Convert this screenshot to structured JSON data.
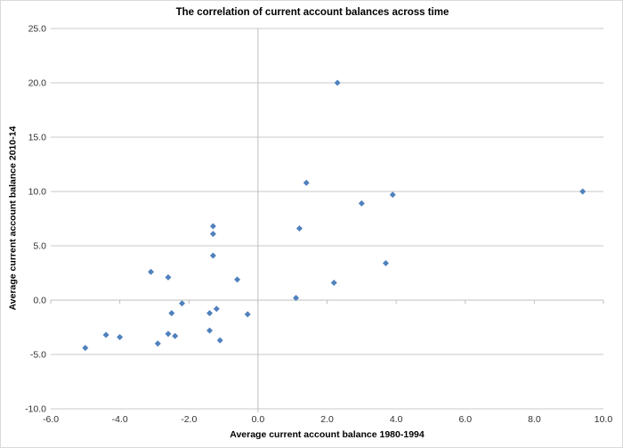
{
  "chart_data": {
    "type": "scatter",
    "title": "The correlation of current account balances across time",
    "xlabel": "Average current account balance 1980-1994",
    "ylabel": "Average current account balance 2010-14",
    "xlim": [
      -6.0,
      10.0
    ],
    "ylim": [
      -10.0,
      25.0
    ],
    "x_ticks": [
      -6,
      -4,
      -2,
      0,
      2,
      4,
      6,
      8,
      10
    ],
    "x_tick_labels": [
      "-6.0",
      "-4.0",
      "-2.0",
      "0.0",
      "2.0",
      "4.0",
      "6.0",
      "8.0",
      "10.0"
    ],
    "y_ticks": [
      25,
      20,
      15,
      10,
      5,
      0,
      -5,
      -10
    ],
    "y_tick_labels": [
      "25.0",
      "20.0",
      "15.0",
      "10.0",
      "5.0",
      "0.0",
      "-5.0",
      "-10.0"
    ],
    "grid": "horizontal-major",
    "legend": "none",
    "marker": {
      "shape": "diamond",
      "size": 7
    },
    "points": [
      [
        2.3,
        20.0
      ],
      [
        1.4,
        10.8
      ],
      [
        9.4,
        10.0
      ],
      [
        3.9,
        9.7
      ],
      [
        3.0,
        8.9
      ],
      [
        -1.3,
        6.8
      ],
      [
        1.2,
        6.6
      ],
      [
        -1.3,
        6.1
      ],
      [
        -1.3,
        4.1
      ],
      [
        3.7,
        3.4
      ],
      [
        -3.1,
        2.6
      ],
      [
        -2.6,
        2.1
      ],
      [
        -0.6,
        1.9
      ],
      [
        2.2,
        1.6
      ],
      [
        1.1,
        0.2
      ],
      [
        -2.2,
        -0.3
      ],
      [
        -1.2,
        -0.8
      ],
      [
        -2.5,
        -1.2
      ],
      [
        -1.4,
        -1.2
      ],
      [
        -0.3,
        -1.3
      ],
      [
        -1.4,
        -2.8
      ],
      [
        -2.6,
        -3.1
      ],
      [
        -4.4,
        -3.2
      ],
      [
        -2.4,
        -3.3
      ],
      [
        -4.0,
        -3.4
      ],
      [
        -1.1,
        -3.7
      ],
      [
        -2.9,
        -4.0
      ],
      [
        -5.0,
        -4.4
      ]
    ]
  },
  "colors": {
    "marker": "#4F81BD",
    "gridline": "#C9C9C9",
    "axis_line": "#BFBFBF",
    "tick_text": "#303030",
    "title_text": "#000000",
    "background": "#FFFFFF"
  }
}
